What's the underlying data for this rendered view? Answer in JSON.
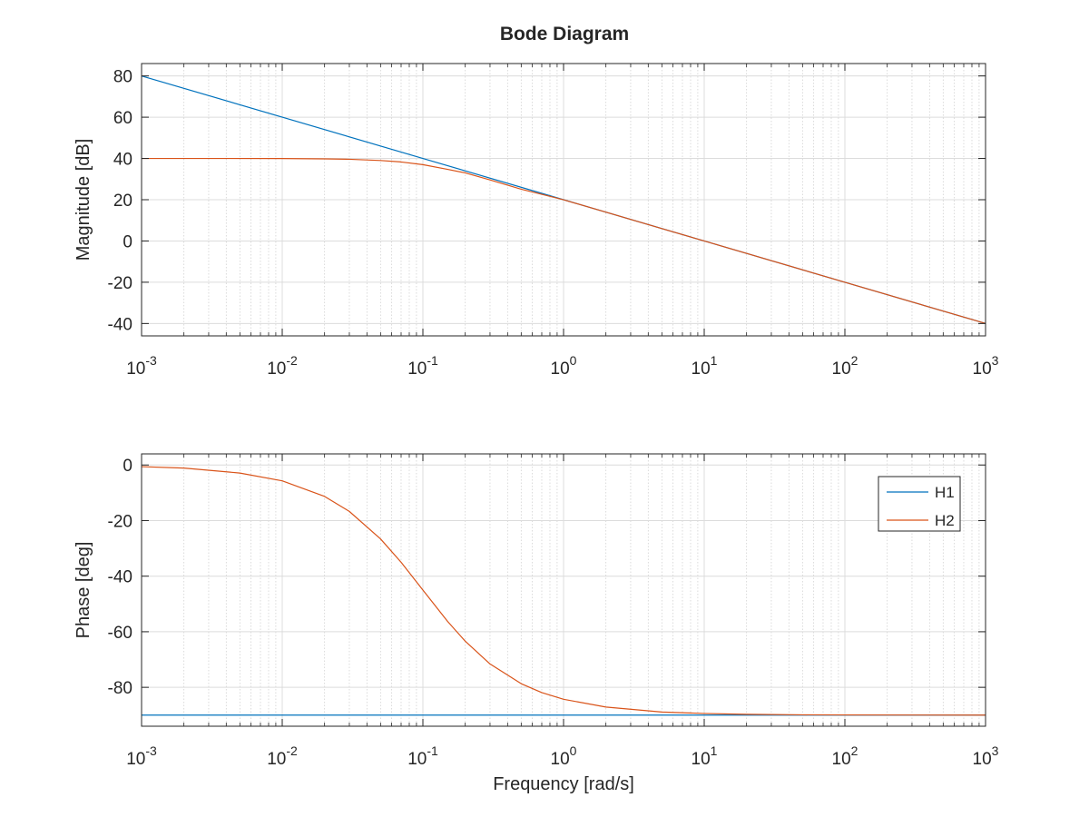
{
  "chart_data": [
    {
      "type": "line",
      "panel": "magnitude",
      "title": "Bode Diagram",
      "xlabel": "",
      "ylabel": "Magnitude [dB]",
      "x_scale": "log",
      "xlim": [
        0.001,
        1000
      ],
      "ylim": [
        -46,
        86
      ],
      "x_ticks": [
        0.001,
        0.01,
        0.1,
        1,
        10,
        100,
        1000
      ],
      "x_tick_labels": [
        {
          "base": "10",
          "exp": "-3"
        },
        {
          "base": "10",
          "exp": "-2"
        },
        {
          "base": "10",
          "exp": "-1"
        },
        {
          "base": "10",
          "exp": "0"
        },
        {
          "base": "10",
          "exp": "1"
        },
        {
          "base": "10",
          "exp": "2"
        },
        {
          "base": "10",
          "exp": "3"
        }
      ],
      "y_ticks": [
        80,
        60,
        40,
        20,
        0,
        -20,
        -40
      ],
      "y_tick_labels": [
        "80",
        "60",
        "40",
        "20",
        "0",
        "-20",
        "-40"
      ],
      "grid": true,
      "series": [
        {
          "name": "H1",
          "color": "#0072BD",
          "x": [
            0.001,
            0.01,
            0.1,
            1,
            10,
            100,
            1000
          ],
          "y": [
            80,
            60,
            40,
            20,
            0,
            -20,
            -40
          ]
        },
        {
          "name": "H2",
          "color": "#D95319",
          "x": [
            0.001,
            0.003,
            0.01,
            0.02,
            0.03,
            0.05,
            0.07,
            0.1,
            0.15,
            0.2,
            0.3,
            0.5,
            0.7,
            1,
            2,
            5,
            10,
            100,
            1000
          ],
          "y": [
            40,
            40,
            39.96,
            39.8,
            39.6,
            39,
            38.3,
            37,
            34.7,
            33,
            29.6,
            25.1,
            22.6,
            19.96,
            13.99,
            6.0,
            0,
            -20,
            -40
          ]
        }
      ]
    },
    {
      "type": "line",
      "panel": "phase",
      "title": "",
      "xlabel": "Frequency [rad/s]",
      "ylabel": "Phase [deg]",
      "x_scale": "log",
      "xlim": [
        0.001,
        1000
      ],
      "ylim": [
        -94,
        4
      ],
      "x_ticks": [
        0.001,
        0.01,
        0.1,
        1,
        10,
        100,
        1000
      ],
      "x_tick_labels": [
        {
          "base": "10",
          "exp": "-3"
        },
        {
          "base": "10",
          "exp": "-2"
        },
        {
          "base": "10",
          "exp": "-1"
        },
        {
          "base": "10",
          "exp": "0"
        },
        {
          "base": "10",
          "exp": "1"
        },
        {
          "base": "10",
          "exp": "2"
        },
        {
          "base": "10",
          "exp": "3"
        }
      ],
      "y_ticks": [
        0,
        -20,
        -40,
        -60,
        -80
      ],
      "y_tick_labels": [
        "0",
        "-20",
        "-40",
        "-60",
        "-80"
      ],
      "grid": true,
      "legend": {
        "placement": "top-right",
        "entries": [
          "H1",
          "H2"
        ]
      },
      "series": [
        {
          "name": "H1",
          "color": "#0072BD",
          "x": [
            0.001,
            1000
          ],
          "y": [
            -90,
            -90
          ]
        },
        {
          "name": "H2",
          "color": "#D95319",
          "x": [
            0.001,
            0.002,
            0.005,
            0.01,
            0.02,
            0.03,
            0.05,
            0.07,
            0.1,
            0.15,
            0.2,
            0.3,
            0.5,
            0.7,
            1,
            2,
            5,
            10,
            20,
            50,
            100,
            1000
          ],
          "y": [
            -0.6,
            -1.1,
            -2.9,
            -5.7,
            -11.3,
            -16.7,
            -26.6,
            -35,
            -45,
            -56.3,
            -63.4,
            -71.6,
            -78.7,
            -81.9,
            -84.3,
            -87.1,
            -88.9,
            -89.4,
            -89.7,
            -89.9,
            -89.94,
            -90
          ]
        }
      ]
    }
  ]
}
